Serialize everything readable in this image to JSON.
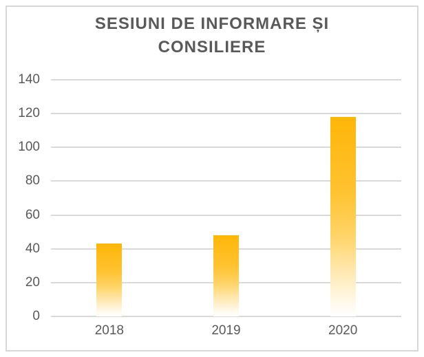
{
  "chart_data": {
    "type": "bar",
    "title": "SESIUNI DE INFORMARE ȘI CONSILIERE",
    "categories": [
      "2018",
      "2019",
      "2020"
    ],
    "values": [
      43,
      48,
      118
    ],
    "xlabel": "",
    "ylabel": "",
    "ylim": [
      0,
      140
    ],
    "yticks": [
      0,
      20,
      40,
      60,
      80,
      100,
      120,
      140
    ],
    "grid": true,
    "legend": false,
    "bar_gradient_stops": [
      [
        "0%",
        "#FFB608"
      ],
      [
        "38%",
        "#FFC231"
      ],
      [
        "60%",
        "#FFD469"
      ],
      [
        "80%",
        "#FFEBBB"
      ],
      [
        "94%",
        "#FFFAEE"
      ],
      [
        "100%",
        "#FFFFFF"
      ]
    ],
    "colors": {
      "bar_top": "#FFB608",
      "bar_bottom": "#FFFFFF",
      "grid": "#D9D9D9",
      "text": "#595959",
      "frame_border": "#D8D8D8",
      "background": "#FFFFFF"
    }
  }
}
